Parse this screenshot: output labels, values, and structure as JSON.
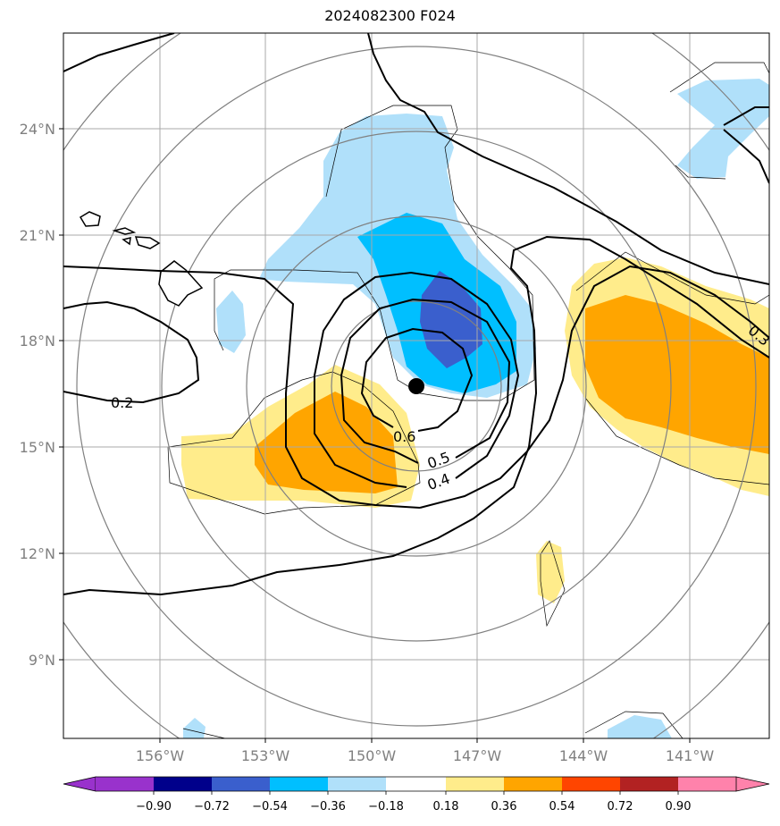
{
  "title": "2024082300 F024",
  "lat_labels": [
    "24°N",
    "21°N",
    "18°N",
    "15°N",
    "12°N",
    "9°N"
  ],
  "lon_labels": [
    "156°W",
    "153°W",
    "150°W",
    "147°W",
    "144°W",
    "141°W"
  ],
  "contour_labels": [
    "0.2",
    "0.6",
    "0.5",
    "0.4",
    "0.3"
  ],
  "colorbar": {
    "ticks": [
      "−0.90",
      "−0.72",
      "−0.54",
      "−0.36",
      "−0.18",
      "0.18",
      "0.36",
      "0.54",
      "0.72",
      "0.90"
    ],
    "colors": [
      "#9932cc",
      "#00008b",
      "#3a5fcd",
      "#00bfff",
      "#b0e0fa",
      "#ffffff",
      "#ffec8b",
      "#ffa500",
      "#ff4500",
      "#b22222",
      "#ff82ab"
    ]
  },
  "colors": {
    "light_blue": "#b0e0fa",
    "deep_sky_blue": "#00bfff",
    "royal_blue": "#3a5fcd",
    "light_yellow": "#ffec8b",
    "orange": "#ffa500",
    "grid": "#a9a9a9",
    "range_ring": "#808080"
  },
  "storm_center": {
    "lon": -148.7,
    "lat": 16.7
  }
}
